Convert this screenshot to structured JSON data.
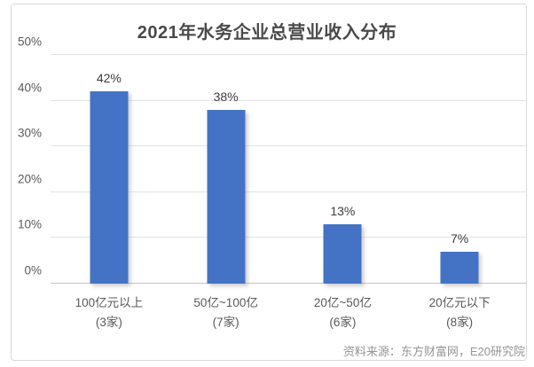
{
  "chart_data": {
    "type": "bar",
    "title": "2021年水务企业总营业收入分布",
    "categories": [
      "100亿元以上",
      "50亿~100亿",
      "20亿~50亿",
      "20亿元以下"
    ],
    "category_counts": [
      "(3家)",
      "(7家)",
      "(6家)",
      "(8家)"
    ],
    "values": [
      42,
      38,
      13,
      7
    ],
    "value_labels": [
      "42%",
      "38%",
      "13%",
      "7%"
    ],
    "y_tick_values": [
      0,
      10,
      20,
      30,
      40,
      50
    ],
    "y_tick_labels": [
      "0%",
      "10%",
      "20%",
      "30%",
      "40%",
      "50%"
    ],
    "ylim": [
      0,
      50
    ],
    "grid": "on",
    "legend_position": "none",
    "bar_color": "#4473C5",
    "source_note": "资料来源：东方财富网，E20研究院"
  }
}
